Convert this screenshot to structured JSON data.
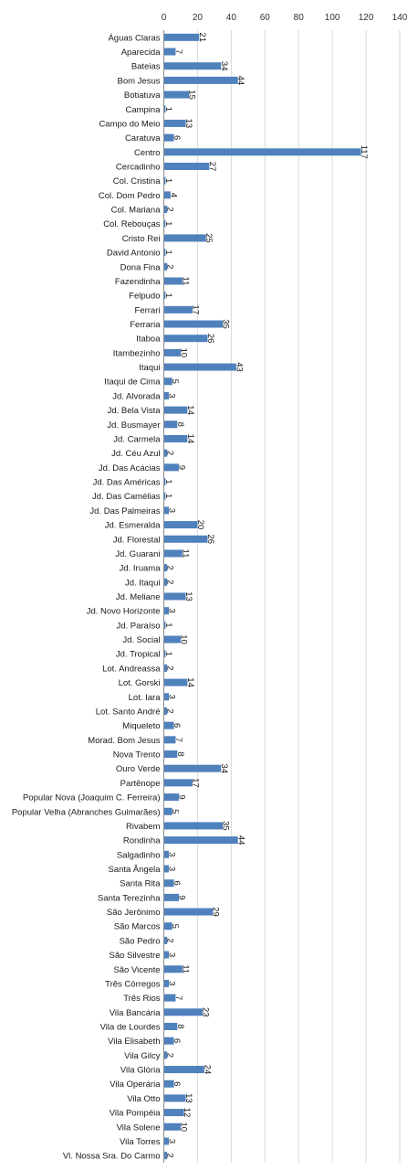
{
  "chart_data": {
    "type": "bar",
    "orientation": "horizontal",
    "title": "",
    "xlabel": "",
    "ylabel": "",
    "xlim": [
      0,
      140
    ],
    "xticks": [
      0,
      20,
      40,
      60,
      80,
      100,
      120,
      140
    ],
    "x_axis_position": "top",
    "data_label_rotation": "vertical",
    "grid": true,
    "legend": "none",
    "bar_color": "#4f81bd",
    "categories": [
      "Águas Claras",
      "Aparecida",
      "Bateias",
      "Bom Jesus",
      "Botiatuva",
      "Campina",
      "Campo do Meio",
      "Caratuva",
      "Centro",
      "Cercadinho",
      "Col. Cristina",
      "Col. Dom Pedro",
      "Col. Mariana",
      "Col. Rebouças",
      "Cristo Rei",
      "David Antonio",
      "Dona Fina",
      "Fazendinha",
      "Felpudo",
      "Ferrari",
      "Ferraria",
      "Itaboa",
      "Itambezinho",
      "Itaqui",
      "Itaqui de Cima",
      "Jd. Alvorada",
      "Jd. Bela Vista",
      "Jd. Busmayer",
      "Jd. Carmela",
      "Jd. Céu Azul",
      "Jd. Das Acácias",
      "Jd. Das Américas",
      "Jd. Das Camélias",
      "Jd. Das Palmeiras",
      "Jd. Esmeralda",
      "Jd. Florestal",
      "Jd. Guarani",
      "Jd. Iruama",
      "Jd. Itaqui",
      "Jd. Meliane",
      "Jd. Novo Horizonte",
      "Jd. Paraíso",
      "Jd. Social",
      "Jd. Tropical",
      "Lot. Andreassa",
      "Lot. Gorski",
      "Lot. Iara",
      "Lot. Santo André",
      "Miqueleto",
      "Morad. Bom Jesus",
      "Nova Trento",
      "Ouro Verde",
      "Partênope",
      "Popular Nova (Joaquim C. Ferreira)",
      "Popular Velha (Abranches Guimarães)",
      "Rivabem",
      "Rondinha",
      "Salgadinho",
      "Santa Ângela",
      "Santa Rita",
      "Santa Terezinha",
      "São Jerônimo",
      "São Marcos",
      "São Pedro",
      "São Silvestre",
      "São Vicente",
      "Três Córregos",
      "Três Rios",
      "Vila Bancária",
      "Vila de Lourdes",
      "Vila Elisabeth",
      "Vila Gilcy",
      "Vila Glória",
      "Vila Operária",
      "Vila Otto",
      "Vila Pompéia",
      "Vila Solene",
      "Vila Torres",
      "Vl. Nossa Sra. Do Carmo"
    ],
    "values": [
      21,
      7,
      34,
      44,
      15,
      1,
      13,
      6,
      117,
      27,
      1,
      4,
      2,
      1,
      25,
      1,
      2,
      11,
      1,
      17,
      35,
      26,
      10,
      43,
      5,
      3,
      14,
      8,
      14,
      2,
      9,
      1,
      1,
      3,
      20,
      26,
      11,
      2,
      2,
      13,
      3,
      1,
      10,
      1,
      2,
      14,
      3,
      2,
      6,
      7,
      8,
      34,
      17,
      9,
      5,
      35,
      44,
      3,
      3,
      6,
      9,
      29,
      5,
      2,
      3,
      11,
      3,
      7,
      23,
      8,
      6,
      2,
      24,
      6,
      13,
      12,
      10,
      3,
      2
    ]
  }
}
